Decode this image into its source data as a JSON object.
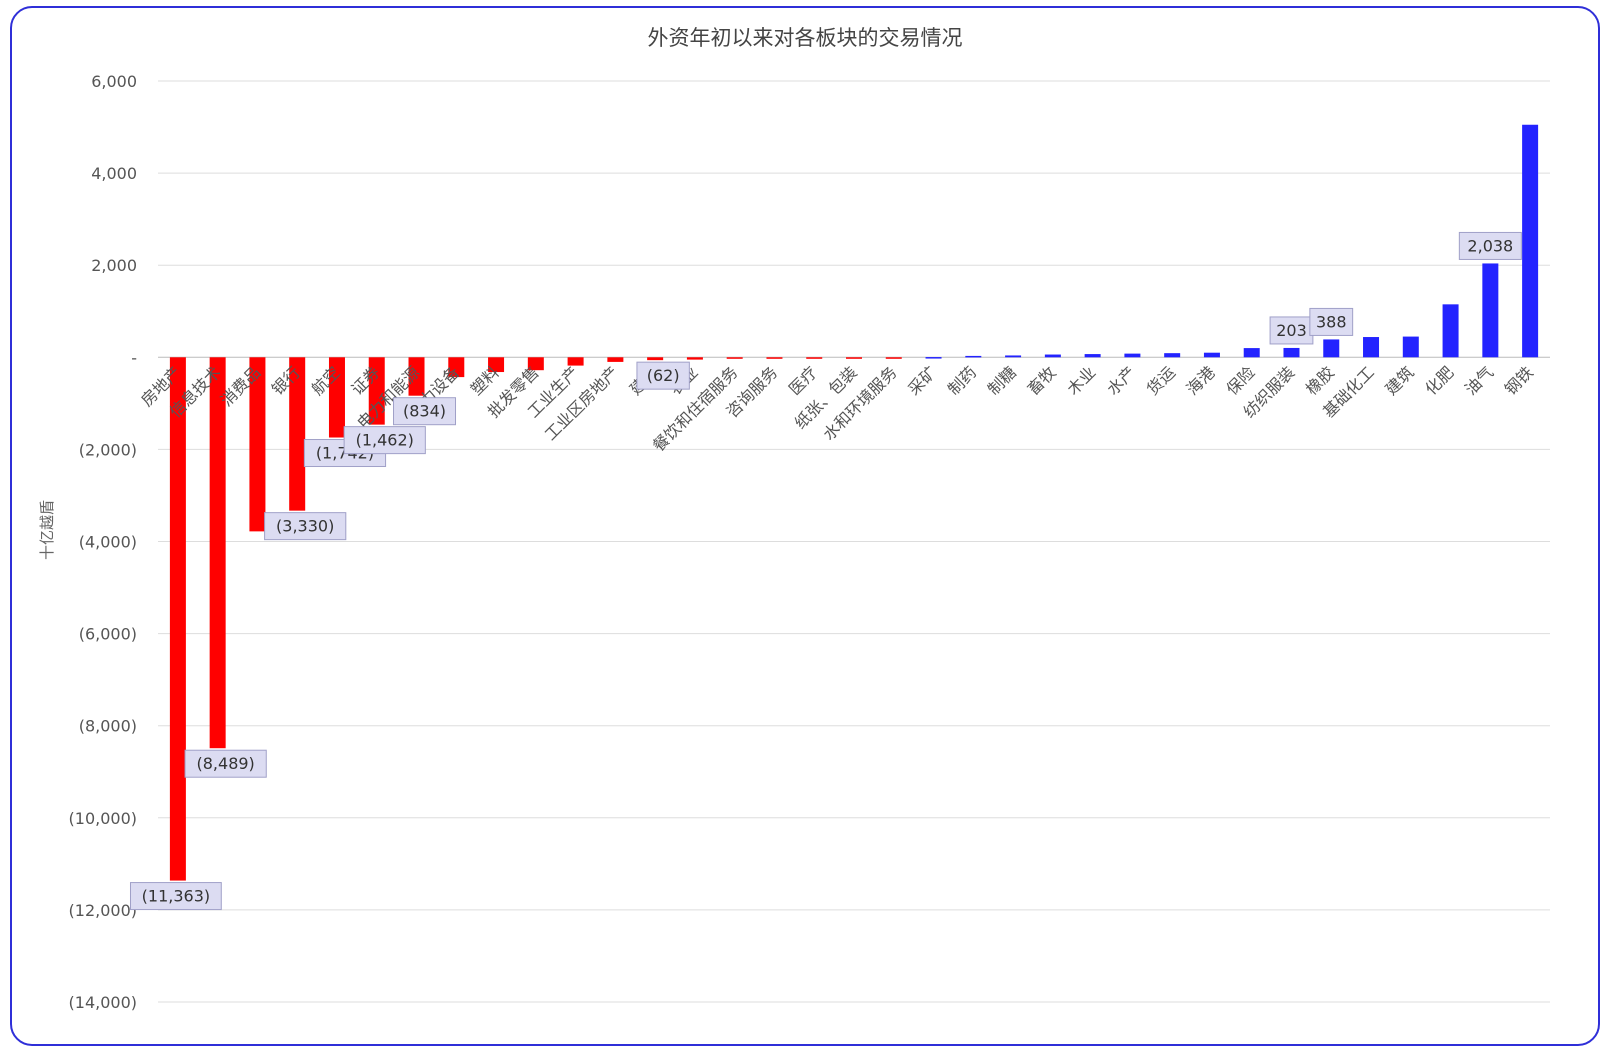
{
  "chart_data": {
    "type": "bar",
    "title": "外资年初以来对各板块的交易情况",
    "ylabel": "十亿越盾",
    "xlabel": "",
    "ylim": [
      -14000,
      6000
    ],
    "yticks": [
      6000,
      4000,
      2000,
      0,
      -2000,
      -4000,
      -6000,
      -8000,
      -10000,
      -12000,
      -14000
    ],
    "ytick_labels": [
      "6,000",
      "4,000",
      "2,000",
      "-",
      "(2,000)",
      "(4,000)",
      "(6,000)",
      "(8,000)",
      "(10,000)",
      "(12,000)",
      "(14,000)"
    ],
    "grid": true,
    "legend": "none",
    "colors": {
      "negative": "#ff0000",
      "positive": "#2323ff",
      "label_bg": "#dcdcf2",
      "label_border": "#a0a0c8"
    },
    "categories": [
      "房地产",
      "信息技术",
      "消费品",
      "银行",
      "航空",
      "证券",
      "电力和能源",
      "电力设备",
      "塑料",
      "批发零售",
      "工业生产",
      "工业区房地产",
      "建材",
      "农业",
      "餐饮和住宿服务",
      "咨询服务",
      "医疗",
      "纸张、包装",
      "水和环境服务",
      "采矿",
      "制药",
      "制糖",
      "畜牧",
      "木业",
      "水产",
      "货运",
      "海港",
      "保险",
      "纺织服装",
      "橡胶",
      "基础化工",
      "建筑",
      "化肥",
      "油气",
      "钢铁"
    ],
    "values": [
      -11363,
      -8489,
      -3780,
      -3330,
      -1742,
      -1462,
      -834,
      -430,
      -320,
      -280,
      -180,
      -100,
      -62,
      -50,
      -30,
      -15,
      -10,
      -8,
      -8,
      5,
      30,
      40,
      60,
      70,
      80,
      90,
      100,
      200,
      203,
      388,
      440,
      450,
      1150,
      2038,
      5050
    ],
    "data_labels": [
      {
        "index": 0,
        "text": "(11,363)"
      },
      {
        "index": 1,
        "text": "(8,489)"
      },
      {
        "index": 3,
        "text": "(3,330)"
      },
      {
        "index": 4,
        "text": "(1,742)"
      },
      {
        "index": 5,
        "text": "(1,462)"
      },
      {
        "index": 6,
        "text": "(834)"
      },
      {
        "index": 12,
        "text": "(62)"
      },
      {
        "index": 28,
        "text": "203"
      },
      {
        "index": 29,
        "text": "388"
      },
      {
        "index": 33,
        "text": "2,038"
      }
    ]
  }
}
